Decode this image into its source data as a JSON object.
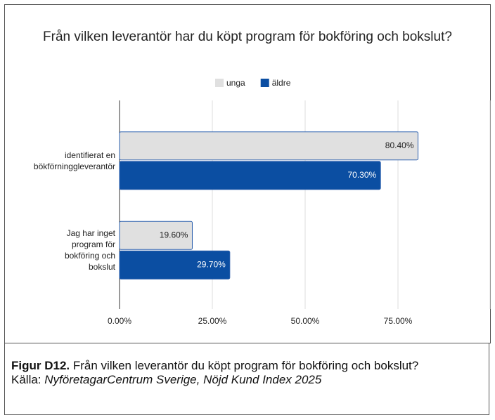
{
  "chart_data": {
    "type": "bar",
    "orientation": "horizontal",
    "title": "Från vilken leverantör har du köpt program för bokföring och bokslut?",
    "categories": [
      "identifierat en bökförninggleverantör",
      "Jag har inget program för bokföring och bokslut"
    ],
    "series": [
      {
        "name": "unga",
        "color": "#e0e0e0",
        "values": [
          80.4,
          19.6
        ],
        "value_labels": [
          "80.40%",
          "19.60%"
        ]
      },
      {
        "name": "äldre",
        "color": "#0b4ea2",
        "values": [
          70.3,
          29.7
        ],
        "value_labels": [
          "70.30%",
          "29.70%"
        ]
      }
    ],
    "xlim": [
      0,
      100
    ],
    "xticks": [
      {
        "value": 0,
        "label": "0.00%"
      },
      {
        "value": 25,
        "label": "25.00%"
      },
      {
        "value": 50,
        "label": "50.00%"
      },
      {
        "value": 75,
        "label": "75.00%"
      }
    ],
    "grid": true,
    "legend": "top"
  },
  "caption": {
    "label": "Figur D12.",
    "text": "Från vilken leverantör du köpt program för bokföring och bokslut?",
    "source_label": "Källa:",
    "source": "NyföretagarCentrum Sverige, Nöjd Kund Index 2025"
  }
}
